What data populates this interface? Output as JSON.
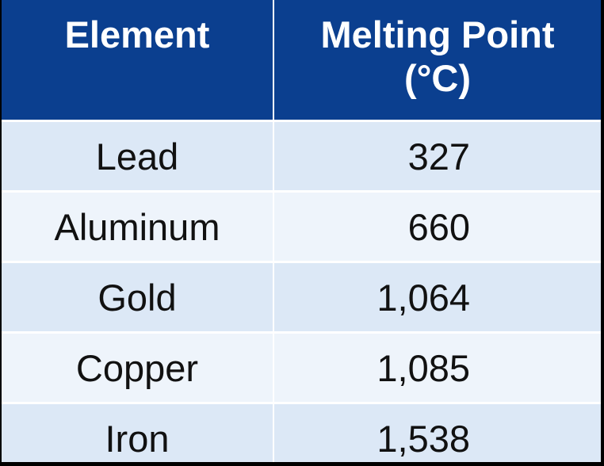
{
  "table": {
    "headers": {
      "element": "Element",
      "melting_point": "Melting Point (°C)"
    },
    "rows": [
      {
        "element": "Lead",
        "melting_point": "327"
      },
      {
        "element": "Aluminum",
        "melting_point": "660"
      },
      {
        "element": "Gold",
        "melting_point": "1,064"
      },
      {
        "element": "Copper",
        "melting_point": "1,085"
      },
      {
        "element": "Iron",
        "melting_point": "1,538"
      }
    ]
  },
  "colors": {
    "header_background": "#0b3f8f",
    "header_text": "#ffffff",
    "row_odd": "#dce8f6",
    "row_even": "#eef4fb",
    "cell_text": "#111111"
  }
}
